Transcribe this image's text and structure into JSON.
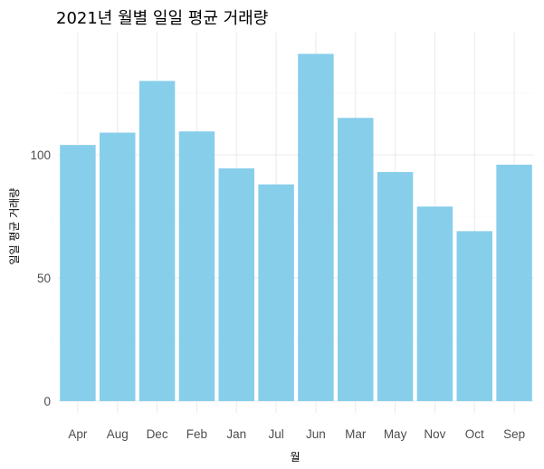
{
  "chart_data": {
    "type": "bar",
    "title": "2021년 월별 일일 평균 거래량",
    "xlabel": "월",
    "ylabel": "일일 평균 거래량",
    "categories": [
      "Apr",
      "Aug",
      "Dec",
      "Feb",
      "Jan",
      "Jul",
      "Jun",
      "Mar",
      "May",
      "Nov",
      "Oct",
      "Sep"
    ],
    "values": [
      104,
      109,
      130,
      109.5,
      94.5,
      88,
      141,
      115,
      93,
      79,
      69,
      96
    ],
    "ylim": [
      0,
      150
    ],
    "yticks": [
      0,
      50,
      100
    ],
    "bar_color": "#87CEEB",
    "grid": true,
    "legend": "none"
  }
}
